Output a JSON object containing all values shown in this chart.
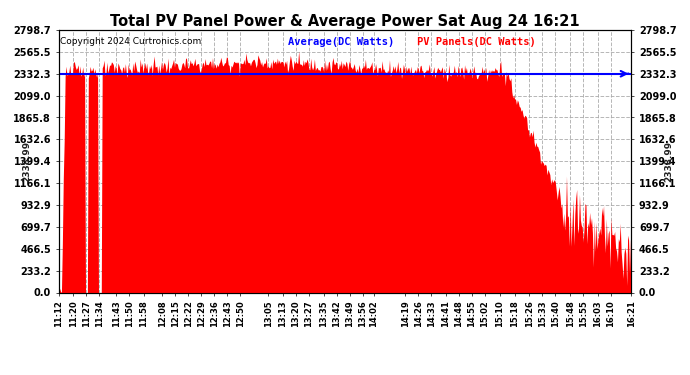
{
  "title": "Total PV Panel Power & Average Power Sat Aug 24 16:21",
  "copyright": "Copyright 2024 Curtronics.com",
  "legend_avg": "Average(DC Watts)",
  "legend_pv": "PV Panels(DC Watts)",
  "avg_value": 2332.3,
  "side_label": "2338.99",
  "y_max": 2798.7,
  "y_min": 0.0,
  "yticks": [
    0.0,
    233.2,
    466.5,
    699.7,
    932.9,
    1166.1,
    1399.4,
    1632.6,
    1865.8,
    2099.0,
    2332.3,
    2565.5,
    2798.7
  ],
  "background_color": "#ffffff",
  "fill_color": "#ff0000",
  "avg_line_color": "#0000ff",
  "grid_color": "#aaaaaa",
  "title_color": "#000000",
  "copyright_color": "#000000",
  "xtick_labels": [
    "11:12",
    "11:20",
    "11:27",
    "11:34",
    "11:43",
    "11:50",
    "11:58",
    "12:08",
    "12:15",
    "12:22",
    "12:29",
    "12:36",
    "12:43",
    "12:50",
    "13:05",
    "13:13",
    "13:20",
    "13:27",
    "13:35",
    "13:42",
    "13:49",
    "13:56",
    "14:02",
    "14:19",
    "14:26",
    "14:33",
    "14:41",
    "14:48",
    "14:55",
    "15:02",
    "15:10",
    "15:18",
    "15:26",
    "15:33",
    "15:40",
    "15:48",
    "15:55",
    "16:03",
    "16:10",
    "16:21"
  ],
  "start_time": "11:12",
  "end_time": "16:21",
  "fig_width": 6.9,
  "fig_height": 3.75,
  "dpi": 100
}
